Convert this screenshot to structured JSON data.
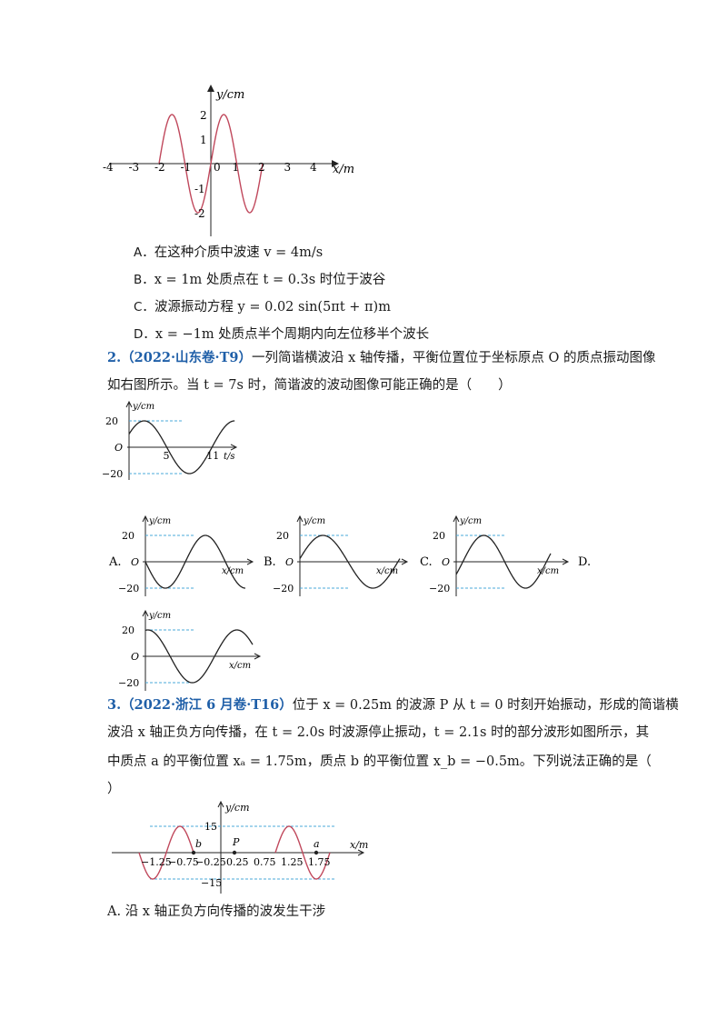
{
  "figure1": {
    "y_label": "y/cm",
    "x_label": "x/m",
    "x_ticks": [
      "-4",
      "-3",
      "-2",
      "-1",
      "0",
      "1",
      "2",
      "3",
      "4"
    ],
    "y_ticks": [
      "2",
      "1",
      "-1",
      "-2"
    ]
  },
  "q1_options": [
    {
      "letter": "A．",
      "text": "在这种介质中波速 v = 4m/s"
    },
    {
      "letter": "B．",
      "text": "x = 1m 处质点在 t = 0.3s 时位于波谷"
    },
    {
      "letter": "C．",
      "text": "波源振动方程 y = 0.02 sin(5πt + π)m"
    },
    {
      "letter": "D．",
      "text": "x = −1m 处质点半个周期内向左位移半个波长"
    }
  ],
  "q2": {
    "head": "2.（2022·山东卷·T9）",
    "line1": "一列简谐横波沿 x 轴传播，平衡位置位于坐标原点 O 的质点振动图像",
    "line2": "如右图所示。当 t = 7s 时，简谐波的波动图像可能正确的是（　　）",
    "vib": {
      "y_label": "y/cm",
      "t_label": "t/s",
      "origin": "O",
      "y_top": "20",
      "y_bottom": "−20",
      "t_ticks": [
        "5",
        "11"
      ]
    },
    "options": [
      {
        "letter": "A.",
        "y_label": "y/cm",
        "x_label": "x/cm",
        "origin": "O",
        "y_top": "20",
        "y_bottom": "−20"
      },
      {
        "letter": "B.",
        "y_label": "y/cm",
        "x_label": "x/cm",
        "origin": "O",
        "y_top": "20",
        "y_bottom": "−20"
      },
      {
        "letter": "C.",
        "y_label": "y/cm",
        "x_label": "x/cm",
        "origin": "O",
        "y_top": "20",
        "y_bottom": "−20"
      },
      {
        "letter": "D.",
        "y_label": "y/cm",
        "x_label": "x/cm",
        "origin": "O",
        "y_top": "20",
        "y_bottom": "−20"
      }
    ]
  },
  "q3": {
    "head": "3.（2022·浙江 6 月卷·T16）",
    "line1": "位于 x = 0.25m 的波源 P 从 t = 0 时刻开始振动，形成的简谐横",
    "line2": "波沿 x 轴正负方向传播，在 t = 2.0s 时波源停止振动，t = 2.1s 时的部分波形如图所示，其",
    "line3": "中质点 a 的平衡位置 xₐ = 1.75m，质点 b 的平衡位置 x_b = −0.5m。下列说法正确的是（",
    "line4": "）",
    "figure": {
      "y_label": "y/cm",
      "x_label": "x/m",
      "y_top": "15",
      "y_bottom": "−15",
      "x_ticks": [
        "−1.25",
        "−0.75",
        "−0.25",
        "0.25",
        "0.75",
        "1.25",
        "1.75"
      ],
      "point_b": "b",
      "point_P": "P",
      "point_a": "a"
    },
    "option_a": "A. 沿 x 轴正负方向传播的波发生干涉"
  }
}
